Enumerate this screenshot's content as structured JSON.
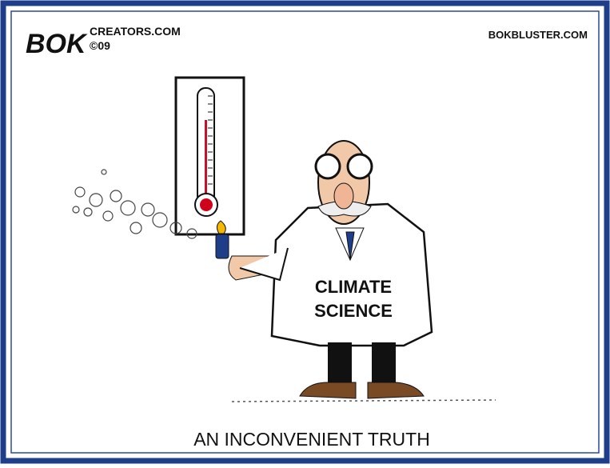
{
  "signature": "BOK",
  "credit": {
    "site": "CREATORS.COM",
    "year": "©09"
  },
  "website": "BOKBLUSTER.COM",
  "coat_text": [
    "CLIMATE",
    "SCIENCE"
  ],
  "caption": "AN INCONVENIENT TRUTH"
}
